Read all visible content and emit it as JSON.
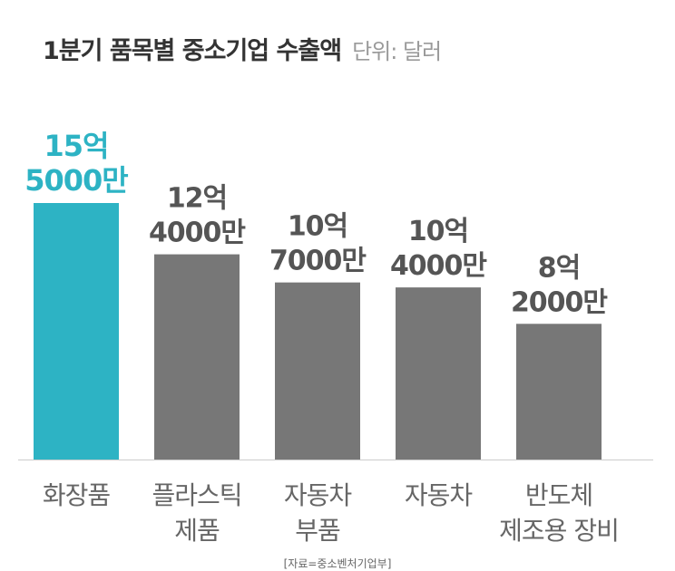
{
  "header": {
    "title": "1분기 품목별 중소기업 수출액",
    "unit": "단위: 달러"
  },
  "source": "[자료=중소벤처기업부]",
  "colors": {
    "highlight": "#2db3c4",
    "bar": "#777777",
    "value_text": "#555555",
    "category_text": "#666666",
    "baseline": "#cccccc"
  },
  "chart_data": {
    "type": "bar",
    "title": "1분기 품목별 중소기업 수출액",
    "ylabel": "단위: 달러",
    "xlabel": "",
    "ylim": [
      0,
      1550000000
    ],
    "grid": false,
    "legend": "none",
    "highlight_index": 0,
    "bars": [
      {
        "category": [
          "화장품"
        ],
        "value": 1550000000,
        "label": [
          "15억",
          "5000만"
        ]
      },
      {
        "category": [
          "플라스틱",
          "제품"
        ],
        "value": 1240000000,
        "label": [
          "12억",
          "4000만"
        ]
      },
      {
        "category": [
          "자동차",
          "부품"
        ],
        "value": 1070000000,
        "label": [
          "10억",
          "7000만"
        ]
      },
      {
        "category": [
          "자동차"
        ],
        "value": 1040000000,
        "label": [
          "10억",
          "4000만"
        ]
      },
      {
        "category": [
          "반도체",
          "제조용 장비"
        ],
        "value": 820000000,
        "label": [
          "8억",
          "2000만"
        ]
      }
    ]
  }
}
